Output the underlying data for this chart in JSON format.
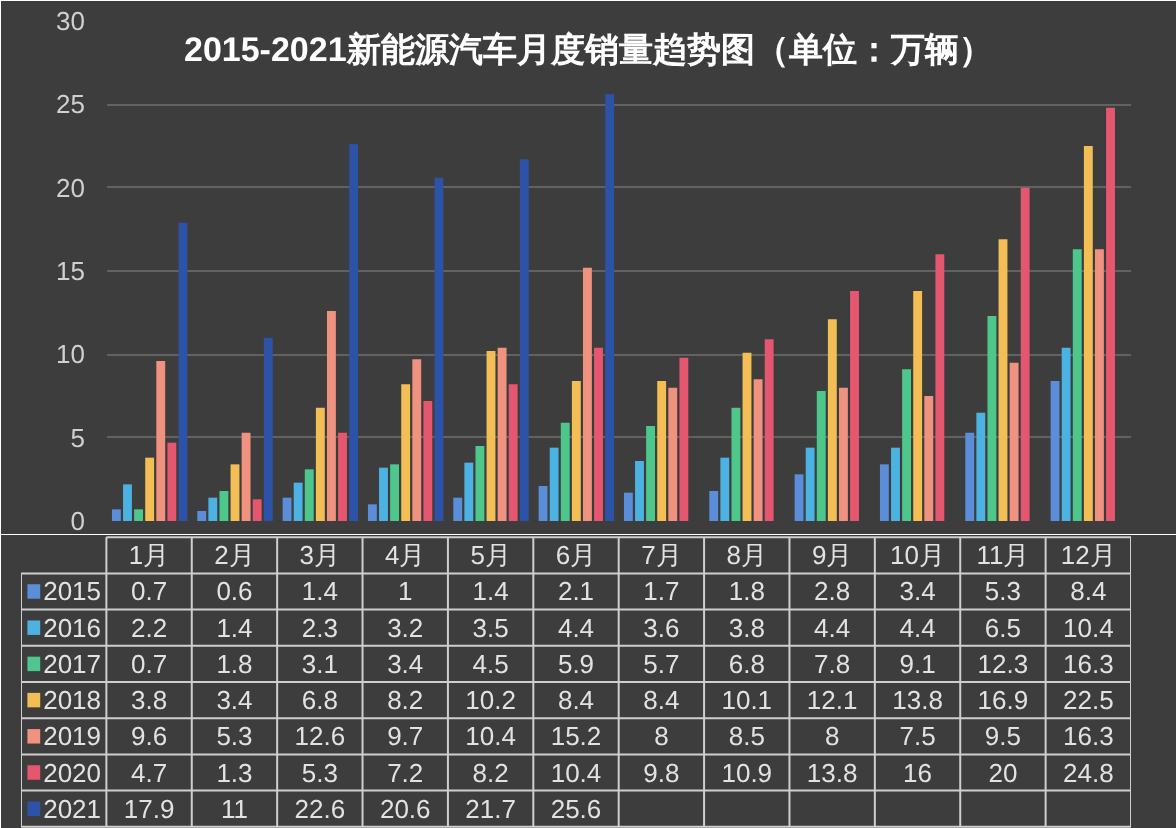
{
  "chart_data": {
    "type": "bar",
    "title": "2015-2021新能源汽车月度销量趋势图（单位：万辆）",
    "categories": [
      "1月",
      "2月",
      "3月",
      "4月",
      "5月",
      "6月",
      "7月",
      "8月",
      "9月",
      "10月",
      "11月",
      "12月"
    ],
    "ylim": [
      0,
      30
    ],
    "yticks": [
      0,
      5,
      10,
      15,
      20,
      25,
      30
    ],
    "grid": "y",
    "legend": "bottom left",
    "data_labels": true,
    "series": [
      {
        "name": "2015",
        "color": "#5b8ed8",
        "values": [
          0.7,
          0.6,
          1.4,
          1,
          1.4,
          2.1,
          1.7,
          1.8,
          2.8,
          3.4,
          5.3,
          8.4
        ]
      },
      {
        "name": "2016",
        "color": "#4cb2e2",
        "values": [
          2.2,
          1.4,
          2.3,
          3.2,
          3.5,
          4.4,
          3.6,
          3.8,
          4.4,
          4.4,
          6.5,
          10.4
        ]
      },
      {
        "name": "2017",
        "color": "#4ec78c",
        "values": [
          0.7,
          1.8,
          3.1,
          3.4,
          4.5,
          5.9,
          5.7,
          6.8,
          7.8,
          9.1,
          12.3,
          16.3
        ]
      },
      {
        "name": "2018",
        "color": "#f3bf54",
        "values": [
          3.8,
          3.4,
          6.8,
          8.2,
          10.2,
          8.4,
          8.4,
          10.1,
          12.1,
          13.8,
          16.9,
          22.5
        ]
      },
      {
        "name": "2019",
        "color": "#ef9380",
        "values": [
          9.6,
          5.3,
          12.6,
          9.7,
          10.4,
          15.2,
          8,
          8.5,
          8,
          7.5,
          9.5,
          16.3
        ]
      },
      {
        "name": "2020",
        "color": "#e5566f",
        "values": [
          4.7,
          1.3,
          5.3,
          7.2,
          8.2,
          10.4,
          9.8,
          10.9,
          13.8,
          16,
          20,
          24.8
        ]
      },
      {
        "name": "2021",
        "color": "#2c53a8",
        "values": [
          17.9,
          11,
          22.6,
          20.6,
          21.7,
          25.6,
          null,
          null,
          null,
          null,
          null,
          null
        ]
      }
    ]
  }
}
